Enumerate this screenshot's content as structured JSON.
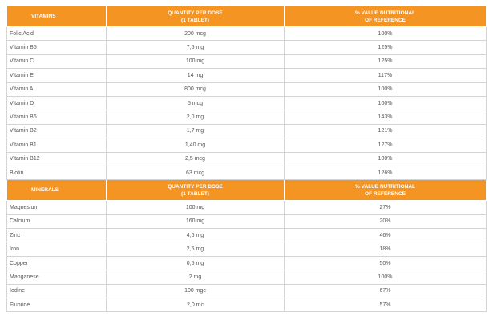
{
  "vitamins": {
    "headers": [
      "VITAMINS",
      "QUANTITY PER DOSE\n(1 TABLET)",
      "% VALUE NUTRITIONAL\nOF REFERENCE"
    ],
    "rows": [
      [
        "Folic Acid",
        "200 mcg",
        "100%"
      ],
      [
        "Vitamin B5",
        "7,5 mg",
        "125%"
      ],
      [
        "Vitamin C",
        "100 mg",
        "125%"
      ],
      [
        "Vitamin E",
        "14 mg",
        "117%"
      ],
      [
        "Vitamin A",
        "800 mcg",
        "100%"
      ],
      [
        "Vitamin D",
        "5 mcg",
        "100%"
      ],
      [
        "Vitamin B6",
        "2,0 mg",
        "143%"
      ],
      [
        "Vitamin B2",
        "1,7 mg",
        "121%"
      ],
      [
        "Vitamin B1",
        "1,40 mg",
        "127%"
      ],
      [
        "Vitamin B12",
        "2,5 mcg",
        "100%"
      ],
      [
        "Biotin",
        "63 mcg",
        "126%"
      ]
    ]
  },
  "minerals": {
    "headers": [
      "MINERALS",
      "QUANTITY PER DOSE\n(1 TABLET)",
      "% VALUE NUTRITIONAL\nOF REFERENCE"
    ],
    "rows": [
      [
        "Magnesium",
        "100 mg",
        "27%"
      ],
      [
        "Calcium",
        "160 mg",
        "20%"
      ],
      [
        "Zinc",
        "4,6 mg",
        "46%"
      ],
      [
        "Iron",
        "2,5 mg",
        "18%"
      ],
      [
        "Copper",
        "0,5 mg",
        "50%"
      ],
      [
        "Manganese",
        "2 mg",
        "100%"
      ],
      [
        "Iodine",
        "100 mgc",
        "67%"
      ],
      [
        "Fluoride",
        "2,0 mc",
        "57%"
      ]
    ]
  },
  "colors": {
    "header_bg": "#f39423",
    "header_text": "#ffffff",
    "cell_border": "#d4d4d4",
    "cell_text": "#555555"
  }
}
